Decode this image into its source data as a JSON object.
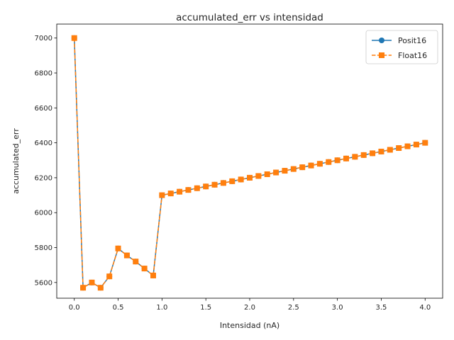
{
  "chart_data": {
    "type": "line",
    "title": "accumulated_err vs intensidad",
    "xlabel": "Intensidad (nA)",
    "ylabel": "accumulated_err",
    "xlim": [
      -0.2,
      4.2
    ],
    "ylim": [
      5510,
      7080
    ],
    "xticks": [
      0.0,
      0.5,
      1.0,
      1.5,
      2.0,
      2.5,
      3.0,
      3.5,
      4.0
    ],
    "xtick_labels": [
      "0.0",
      "0.5",
      "1.0",
      "1.5",
      "2.0",
      "2.5",
      "3.0",
      "3.5",
      "4.0"
    ],
    "yticks": [
      5600,
      5800,
      6000,
      6200,
      6400,
      6600,
      6800,
      7000
    ],
    "ytick_labels": [
      "5600",
      "5800",
      "6000",
      "6200",
      "6400",
      "6600",
      "6800",
      "7000"
    ],
    "grid": false,
    "legend_position": "top-right",
    "x": [
      0.0,
      0.1,
      0.2,
      0.3,
      0.4,
      0.5,
      0.6,
      0.7,
      0.8,
      0.9,
      1.0,
      1.1,
      1.2,
      1.3,
      1.4,
      1.5,
      1.6,
      1.7,
      1.8,
      1.9,
      2.0,
      2.1,
      2.2,
      2.3,
      2.4,
      2.5,
      2.6,
      2.7,
      2.8,
      2.9,
      3.0,
      3.1,
      3.2,
      3.3,
      3.4,
      3.5,
      3.6,
      3.7,
      3.8,
      3.9,
      4.0
    ],
    "series": [
      {
        "name": "Posit16",
        "color": "#1f77b4",
        "marker": "circle",
        "linestyle": "solid",
        "values": [
          7000,
          5570,
          5600,
          5570,
          5635,
          5795,
          5755,
          5720,
          5680,
          5640,
          6100,
          6110,
          6120,
          6130,
          6140,
          6150,
          6160,
          6170,
          6180,
          6190,
          6200,
          6210,
          6220,
          6230,
          6240,
          6250,
          6260,
          6270,
          6280,
          6290,
          6300,
          6310,
          6320,
          6330,
          6340,
          6350,
          6360,
          6370,
          6380,
          6390,
          6400
        ]
      },
      {
        "name": "Float16",
        "color": "#ff7f0e",
        "marker": "square",
        "linestyle": "dashed",
        "values": [
          7000,
          5570,
          5600,
          5570,
          5635,
          5795,
          5755,
          5720,
          5680,
          5640,
          6100,
          6110,
          6120,
          6130,
          6140,
          6150,
          6160,
          6170,
          6180,
          6190,
          6200,
          6210,
          6220,
          6230,
          6240,
          6250,
          6260,
          6270,
          6280,
          6290,
          6300,
          6310,
          6320,
          6330,
          6340,
          6350,
          6360,
          6370,
          6380,
          6390,
          6400
        ]
      }
    ]
  }
}
